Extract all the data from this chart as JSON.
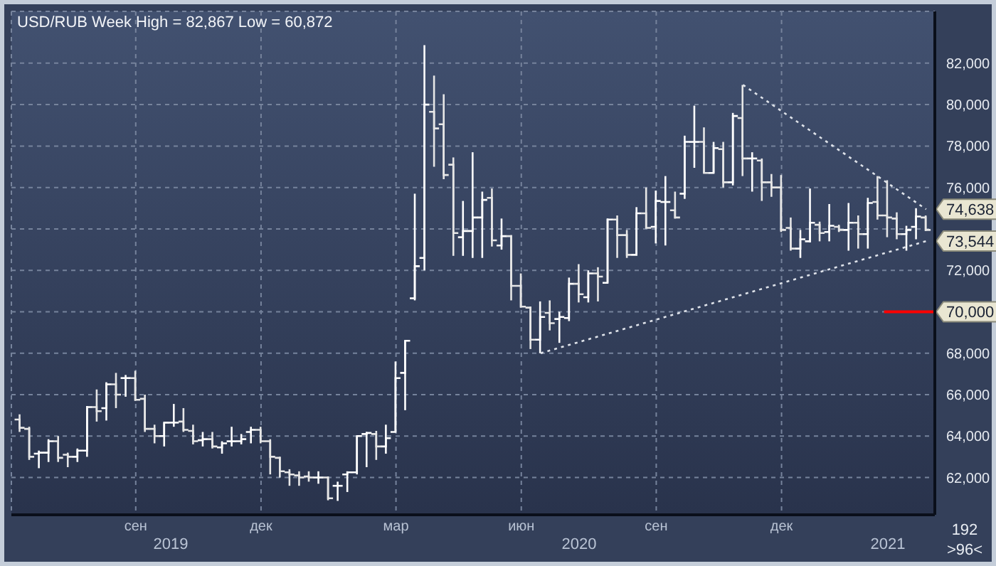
{
  "chart_data": {
    "type": "candlestick",
    "title": "USD/RUB Week High = 82,867 Low = 60,872",
    "colors": [
      "#e6e6e6",
      "#e6e6e6",
      "#ffffff",
      "#ffffff",
      "#e6e6e6",
      "#e6e6e6",
      "#ffffff",
      "#ffffff",
      "#e6e6e6",
      "#ffffff",
      "#e6e6e6",
      "#ffffff",
      "#e6e6e6",
      "#e6e6e6",
      "#e6e6e6",
      "#ffffff",
      "#ffffff",
      "#e6e6e6",
      "#e6e6e6",
      "#ffffff",
      "#e6e6e6",
      "#ffffff",
      "#ffffff",
      "#ffffff",
      "#ffffff",
      "#e6e6e6",
      "#e6e6e6",
      "#e6e6e6",
      "#e6e6e6",
      "#e6e6e6",
      "#e6e6e6",
      "#ffffff",
      "#e6e6e6",
      "#ffffff",
      "#ffffff",
      "#ffffff",
      "#ffffff",
      "#e6e6e6",
      "#ffffff",
      "#ffffff",
      "#ffffff",
      "#ffffff",
      "#ffffff",
      "#e6e6e6",
      "#e6e6e6",
      "#e6e6e6",
      "#ffffff",
      "#ffffff",
      "#ffffff",
      "#e6e6e6",
      "#ffffff",
      "#e6e6e6",
      "#e6e6e6",
      "#e6e6e6",
      "#ffffff",
      "#e6e6e6",
      "#ffffff",
      "#ffffff",
      "#e6e6e6",
      "#ffffff",
      "#e6e6e6",
      "#ffffff",
      "#e6e6e6",
      "#e6e6e6",
      "#ffffff",
      "#e6e6e6",
      "#ffffff",
      "#ffffff",
      "#e6e6e6",
      "#ffffff",
      "#ffffff",
      "#e6e6e6",
      "#ffffff",
      "#e6e6e6",
      "#ffffff",
      "#e6e6e6",
      "#ffffff",
      "#e6e6e6",
      "#e6e6e6",
      "#e6e6e6",
      "#e6e6e6",
      "#ffffff",
      "#ffffff",
      "#e6e6e6",
      "#ffffff",
      "#e6e6e6",
      "#ffffff",
      "#e6e6e6",
      "#ffffff",
      "#e6e6e6",
      "#e6e6e6",
      "#e6e6e6",
      "#ffffff",
      "#ffffff",
      "#e6e6e6"
    ],
    "categories": [
      null,
      null,
      null,
      null,
      null,
      null,
      null,
      null,
      null,
      null,
      null,
      null,
      "сен",
      null,
      null,
      null,
      null,
      null,
      null,
      null,
      null,
      null,
      null,
      null,
      null,
      "дек",
      null,
      null,
      null,
      null,
      null,
      null,
      null,
      null,
      null,
      null,
      null,
      null,
      null,
      "мар",
      null,
      null,
      null,
      null,
      null,
      null,
      null,
      null,
      null,
      null,
      null,
      null,
      "июн",
      null,
      null,
      null,
      null,
      null,
      null,
      null,
      null,
      null,
      null,
      null,
      null,
      null,
      "сен",
      null,
      null,
      null,
      null,
      null,
      null,
      null,
      null,
      null,
      null,
      null,
      null,
      "дек",
      null,
      null,
      null,
      null,
      null,
      null,
      null,
      null,
      null,
      null,
      null,
      null,
      null,
      null,
      null
    ],
    "ohlc": [
      [
        64800,
        65050,
        64200,
        64400
      ],
      [
        64350,
        64450,
        62850,
        63000
      ],
      [
        63150,
        63300,
        62450,
        63200
      ],
      [
        63200,
        63850,
        62750,
        63750
      ],
      [
        63750,
        64000,
        62750,
        62950
      ],
      [
        63100,
        63200,
        62500,
        63000
      ],
      [
        63000,
        63400,
        62750,
        63300
      ],
      [
        63300,
        65450,
        63000,
        65400
      ],
      [
        65400,
        66250,
        64700,
        65200
      ],
      [
        65350,
        66600,
        64750,
        66500
      ],
      [
        66500,
        67050,
        65350,
        66000
      ],
      [
        66800,
        66950,
        65900,
        66800
      ],
      [
        66800,
        67150,
        65700,
        65750
      ],
      [
        65800,
        66000,
        64200,
        64350
      ],
      [
        64350,
        64550,
        63650,
        64000
      ],
      [
        64000,
        64650,
        63500,
        64650
      ],
      [
        64650,
        65550,
        64450,
        64650
      ],
      [
        64700,
        65350,
        64200,
        64300
      ],
      [
        64250,
        64550,
        63600,
        63750
      ],
      [
        63800,
        64200,
        63500,
        63850
      ],
      [
        63850,
        64200,
        63400,
        63500
      ],
      [
        63450,
        63750,
        63150,
        63650
      ],
      [
        63750,
        64450,
        63500,
        63750
      ],
      [
        63750,
        64100,
        63600,
        63850
      ],
      [
        64200,
        64450,
        63650,
        64300
      ],
      [
        64300,
        64450,
        63650,
        63750
      ],
      [
        63750,
        63850,
        62150,
        63000
      ],
      [
        62950,
        63000,
        62000,
        62300
      ],
      [
        62250,
        62400,
        61600,
        62150
      ],
      [
        62100,
        62300,
        61600,
        62000
      ],
      [
        62050,
        62300,
        61800,
        62000
      ],
      [
        62000,
        62300,
        61700,
        62000
      ],
      [
        62000,
        62050,
        60900,
        61000
      ],
      [
        61600,
        61800,
        60872,
        61600
      ],
      [
        62150,
        62300,
        61300,
        62250
      ],
      [
        62250,
        64000,
        62150,
        64000
      ],
      [
        64100,
        64200,
        62500,
        64150
      ],
      [
        64100,
        64250,
        62850,
        63500
      ],
      [
        63500,
        64550,
        63150,
        63900
      ],
      [
        64200,
        67600,
        64200,
        66800
      ],
      [
        67050,
        68600,
        65250,
        68600
      ],
      [
        70650,
        75700,
        70550,
        72200
      ],
      [
        72600,
        82867,
        72000,
        80000
      ],
      [
        79650,
        81400,
        77000,
        78850
      ],
      [
        79050,
        80500,
        76400,
        76600
      ],
      [
        77100,
        77450,
        72700,
        73800
      ],
      [
        73600,
        75350,
        72700,
        73900
      ],
      [
        73900,
        77700,
        72600,
        74550
      ],
      [
        74550,
        75800,
        72600,
        75400
      ],
      [
        75500,
        75950,
        73150,
        73450
      ],
      [
        73200,
        74500,
        73000,
        73650
      ],
      [
        73650,
        73700,
        70550,
        71250
      ],
      [
        71250,
        71850,
        70200,
        70250
      ],
      [
        70200,
        70250,
        68200,
        68650
      ],
      [
        68650,
        70500,
        68000,
        69750
      ],
      [
        69950,
        70550,
        69100,
        69450
      ],
      [
        69650,
        70000,
        68500,
        69750
      ],
      [
        69700,
        71650,
        69550,
        71350
      ],
      [
        71350,
        72300,
        70450,
        70850
      ],
      [
        70700,
        72000,
        70450,
        71850
      ],
      [
        71850,
        72150,
        70500,
        71700
      ],
      [
        71400,
        74500,
        71400,
        74450
      ],
      [
        74450,
        74650,
        72600,
        73700
      ],
      [
        73700,
        73950,
        72600,
        72750
      ],
      [
        72750,
        75050,
        72750,
        74750
      ],
      [
        74750,
        76000,
        74050,
        74050
      ],
      [
        74100,
        75850,
        73300,
        75350
      ],
      [
        75300,
        76550,
        73200,
        75300
      ],
      [
        74900,
        75800,
        74500,
        74550
      ],
      [
        75700,
        78500,
        75450,
        78200
      ],
      [
        78200,
        79950,
        76950,
        78200
      ],
      [
        78200,
        78900,
        76700,
        76700
      ],
      [
        76700,
        78200,
        76700,
        77900
      ],
      [
        77850,
        78200,
        76000,
        76250
      ],
      [
        76250,
        79600,
        76100,
        79450
      ],
      [
        79350,
        80950,
        76550,
        77400
      ],
      [
        77400,
        77700,
        75800,
        77400
      ],
      [
        77300,
        77400,
        75350,
        76250
      ],
      [
        76250,
        76650,
        75550,
        76000
      ],
      [
        76000,
        76600,
        73850,
        73950
      ],
      [
        74050,
        74550,
        72950,
        73050
      ],
      [
        73050,
        73950,
        72600,
        73500
      ],
      [
        73400,
        75950,
        73350,
        74300
      ],
      [
        74200,
        74350,
        73400,
        73800
      ],
      [
        73850,
        75200,
        73400,
        74150
      ],
      [
        74100,
        74200,
        73850,
        73950
      ],
      [
        73950,
        75250,
        72950,
        74300
      ],
      [
        74300,
        74650,
        73050,
        73750
      ],
      [
        73750,
        75500,
        73050,
        75250
      ],
      [
        75300,
        76550,
        74450,
        74650
      ],
      [
        74650,
        76350,
        73600,
        74550
      ],
      [
        74500,
        74800,
        73500,
        73750
      ],
      [
        73750,
        74150,
        72950,
        73950
      ],
      [
        74100,
        75000,
        73500,
        74600
      ],
      [
        74550,
        74650,
        73900,
        73950
      ]
    ],
    "series": [
      {
        "type": "line",
        "color": "#dfe3ea",
        "line_style": "dotted",
        "values": [
          null,
          null,
          null,
          null,
          null,
          null,
          null,
          null,
          null,
          null,
          null,
          null,
          null,
          null,
          null,
          null,
          null,
          null,
          null,
          null,
          null,
          null,
          null,
          null,
          null,
          null,
          null,
          null,
          null,
          null,
          null,
          null,
          null,
          null,
          null,
          null,
          null,
          null,
          null,
          null,
          null,
          null,
          null,
          null,
          null,
          null,
          null,
          null,
          null,
          null,
          null,
          null,
          null,
          null,
          null,
          null,
          null,
          null,
          null,
          null,
          null,
          null,
          null,
          null,
          null,
          null,
          null,
          null,
          null,
          null,
          null,
          null,
          null,
          null,
          null,
          80950,
          null,
          null,
          null,
          null,
          null,
          null,
          null,
          null,
          null,
          null,
          null,
          null,
          null,
          null,
          null,
          null,
          null,
          null,
          74950
        ]
      },
      {
        "type": "line",
        "color": "#dfe3ea",
        "line_style": "dotted",
        "values": [
          null,
          null,
          null,
          null,
          null,
          null,
          null,
          null,
          null,
          null,
          null,
          null,
          null,
          null,
          null,
          null,
          null,
          null,
          null,
          null,
          null,
          null,
          null,
          null,
          null,
          null,
          null,
          null,
          null,
          null,
          null,
          null,
          null,
          null,
          null,
          null,
          null,
          null,
          null,
          null,
          null,
          null,
          null,
          null,
          null,
          null,
          null,
          null,
          null,
          null,
          null,
          null,
          null,
          null,
          68000,
          null,
          null,
          null,
          null,
          null,
          null,
          null,
          null,
          null,
          null,
          null,
          null,
          null,
          null,
          null,
          null,
          null,
          null,
          null,
          null,
          null,
          null,
          null,
          null,
          null,
          null,
          null,
          null,
          null,
          null,
          null,
          null,
          null,
          null,
          null,
          null,
          null,
          null,
          null,
          73410
        ]
      }
    ],
    "ref_lines": [
      {
        "axis": "y",
        "value": 70000,
        "label": "70,000",
        "color": "#ff0000"
      }
    ],
    "ylim": [
      60200,
      84500
    ],
    "yticks": [
      {
        "value": 62000,
        "label": "62,000"
      },
      {
        "value": 64000,
        "label": "64,000"
      },
      {
        "value": 66000,
        "label": "66,000"
      },
      {
        "value": 68000,
        "label": "68,000"
      },
      {
        "value": 70000,
        "label": null
      },
      {
        "value": 72000,
        "label": "72,000"
      },
      {
        "value": 74000,
        "label": null
      },
      {
        "value": 76000,
        "label": "76,000"
      },
      {
        "value": 78000,
        "label": "78,000"
      },
      {
        "value": 80000,
        "label": "80,000"
      },
      {
        "value": 82000,
        "label": "82,000"
      }
    ],
    "grid": true,
    "annotations": [
      "2019",
      "2020",
      "2021",
      "192",
      ">96<",
      "74,638",
      "73,544"
    ]
  }
}
